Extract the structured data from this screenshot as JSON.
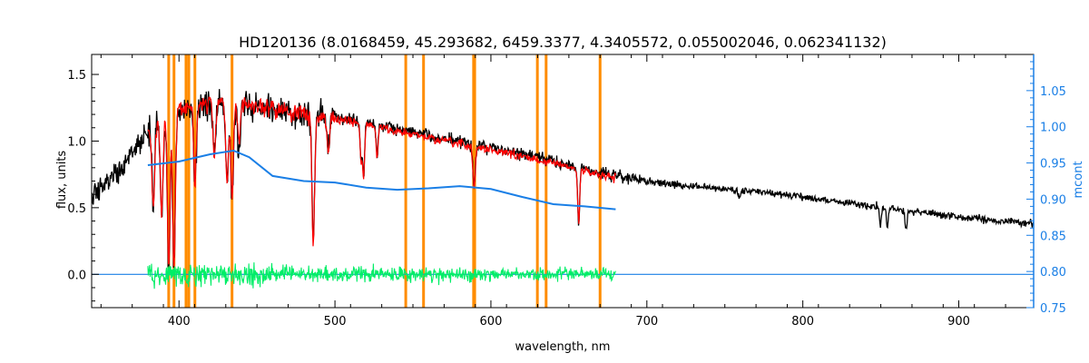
{
  "chart_data": {
    "type": "line",
    "title": "HD120136    (8.0168459, 45.293682, 6459.3377, 4.3405572, 0.055002046, 0.062341132)",
    "xlabel": "wavelength, nm",
    "ylabel": "flux, units",
    "y2label": "mcont",
    "xlim": [
      344,
      948
    ],
    "ylim": [
      -0.25,
      1.65
    ],
    "y2lim": [
      0.75,
      1.1
    ],
    "xticks": [
      "400",
      "500",
      "600",
      "700",
      "800",
      "900"
    ],
    "xtick_values": [
      400,
      500,
      600,
      700,
      800,
      900
    ],
    "yticks": [
      "0.0",
      "0.5",
      "1.0",
      "1.5"
    ],
    "ytick_values": [
      0.0,
      0.5,
      1.0,
      1.5
    ],
    "y2ticks": [
      "0.75",
      "0.80",
      "0.85",
      "0.90",
      "0.95",
      "1.00",
      "1.05"
    ],
    "y2tick_values": [
      0.75,
      0.8,
      0.85,
      0.9,
      0.95,
      1.0,
      1.05
    ],
    "colors": {
      "observed": "#000000",
      "model": "#ff0000",
      "continuum": "#1a7fe6",
      "residual": "#00ee66",
      "marker": "#ff8c00",
      "right_axis": "#1a7fe6"
    },
    "marker_lines_x": [
      393.4,
      396.8,
      404.5,
      406.3,
      410.2,
      434.0,
      545.4,
      556.8,
      588.9,
      589.6,
      629.8,
      635.4,
      670.0
    ],
    "series": [
      {
        "kind": "observed",
        "envelope_x": [
          344,
          360,
          380,
          400,
          420,
          440,
          460,
          480,
          500,
          520,
          540,
          560,
          580,
          600,
          620,
          640,
          660,
          680,
          700,
          720,
          740,
          760,
          780,
          800,
          820,
          840,
          860,
          880,
          900,
          920,
          948
        ],
        "envelope_y": [
          0.62,
          0.8,
          1.1,
          1.25,
          1.3,
          1.3,
          1.26,
          1.22,
          1.18,
          1.14,
          1.09,
          1.04,
          0.99,
          0.95,
          0.9,
          0.85,
          0.79,
          0.74,
          0.7,
          0.67,
          0.65,
          0.63,
          0.61,
          0.58,
          0.55,
          0.52,
          0.49,
          0.46,
          0.43,
          0.41,
          0.38
        ],
        "absorption_lines": [
          {
            "x": 383.5,
            "depth": 0.55
          },
          {
            "x": 388.9,
            "depth": 0.6
          },
          {
            "x": 393.4,
            "depth": 0.95
          },
          {
            "x": 396.8,
            "depth": 0.95
          },
          {
            "x": 410.2,
            "depth": 0.45
          },
          {
            "x": 422.7,
            "depth": 0.3
          },
          {
            "x": 430.8,
            "depth": 0.45
          },
          {
            "x": 434.0,
            "depth": 0.55
          },
          {
            "x": 438.4,
            "depth": 0.25
          },
          {
            "x": 486.1,
            "depth": 0.78
          },
          {
            "x": 495.8,
            "depth": 0.2
          },
          {
            "x": 516.8,
            "depth": 0.25
          },
          {
            "x": 518.4,
            "depth": 0.35
          },
          {
            "x": 527.0,
            "depth": 0.2
          },
          {
            "x": 588.9,
            "depth": 0.2
          },
          {
            "x": 589.6,
            "depth": 0.2
          },
          {
            "x": 656.3,
            "depth": 0.5
          },
          {
            "x": 759.4,
            "depth": 0.1
          },
          {
            "x": 849.8,
            "depth": 0.25
          },
          {
            "x": 854.2,
            "depth": 0.3
          },
          {
            "x": 866.2,
            "depth": 0.32
          }
        ]
      },
      {
        "kind": "model",
        "x_range": [
          380,
          680
        ]
      },
      {
        "kind": "continuum",
        "axis": "right",
        "x": [
          380,
          400,
          420,
          435,
          445,
          460,
          480,
          500,
          520,
          540,
          560,
          580,
          600,
          620,
          640,
          660,
          680
        ],
        "y": [
          0.947,
          0.952,
          0.962,
          0.967,
          0.958,
          0.932,
          0.925,
          0.923,
          0.916,
          0.913,
          0.915,
          0.918,
          0.914,
          0.903,
          0.893,
          0.89,
          0.886
        ]
      },
      {
        "kind": "residual",
        "x_range": [
          380,
          680
        ],
        "amplitude": 0.06,
        "baseline": 0.0
      },
      {
        "kind": "zero_baseline",
        "axis": "left",
        "y": 0.0
      }
    ]
  }
}
